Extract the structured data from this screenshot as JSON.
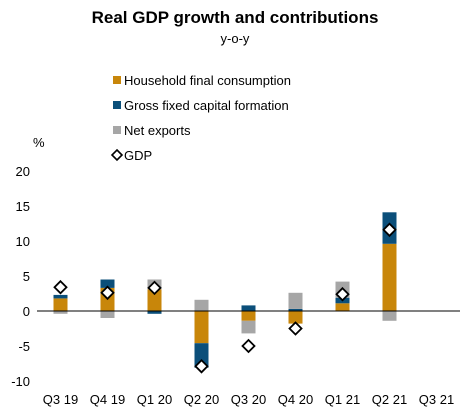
{
  "chart_data": {
    "type": "bar",
    "title": "Real GDP growth and contributions",
    "subtitle": "y-o-y",
    "ylabel": "%",
    "xlabel": "",
    "ylim": [
      -10,
      20
    ],
    "yticks": [
      -10,
      -5,
      0,
      5,
      10,
      15,
      20
    ],
    "stacked": true,
    "grid": false,
    "legend_position": "top",
    "categories": [
      "Q3 19",
      "Q4 19",
      "Q1 20",
      "Q2 20",
      "Q3 20",
      "Q4 20",
      "Q1 21",
      "Q2 21",
      "Q3 21"
    ],
    "series": [
      {
        "name": "Household final consumption",
        "color": "#c8860a",
        "values": [
          1.8,
          3.3,
          3.1,
          -4.6,
          -1.4,
          -1.8,
          1.1,
          9.6,
          null
        ]
      },
      {
        "name": "Gross fixed capital formation",
        "color": "#0b4f7a",
        "values": [
          0.5,
          1.2,
          -0.4,
          -3.5,
          0.8,
          0.3,
          0.8,
          4.5,
          null
        ]
      },
      {
        "name": "Net exports",
        "color": "#a6a6a6",
        "values": [
          -0.4,
          -1.0,
          1.4,
          1.6,
          -1.8,
          2.3,
          2.3,
          -1.4,
          null
        ]
      }
    ],
    "markers": {
      "name": "GDP",
      "style": "open-diamond",
      "values": [
        3.4,
        2.6,
        3.3,
        -7.9,
        -5.0,
        -2.5,
        2.4,
        11.6,
        null
      ]
    }
  }
}
